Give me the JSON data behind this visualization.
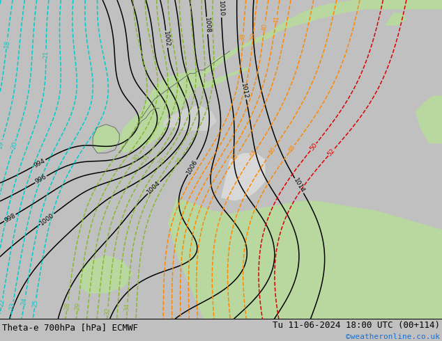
{
  "title_left": "Theta-e 700hPa [hPa] ECMWF",
  "title_right": "Tu 11-06-2024 18:00 UTC (00+114)",
  "credit": "©weatheronline.co.uk",
  "bg_color": "#e0e0e0",
  "land_green": "#b8d8a0",
  "land_gray": "#c0c0c0",
  "coast_color": "#808080",
  "pressure_color": "#000000",
  "theta_cyan": "#00cccc",
  "theta_green": "#88b830",
  "theta_orange": "#ff8800",
  "theta_red": "#dd0000",
  "theta_yellow": "#ccaa00",
  "figsize": [
    6.34,
    4.9
  ],
  "dpi": 100,
  "font_size_title": 9,
  "font_size_credit": 8
}
